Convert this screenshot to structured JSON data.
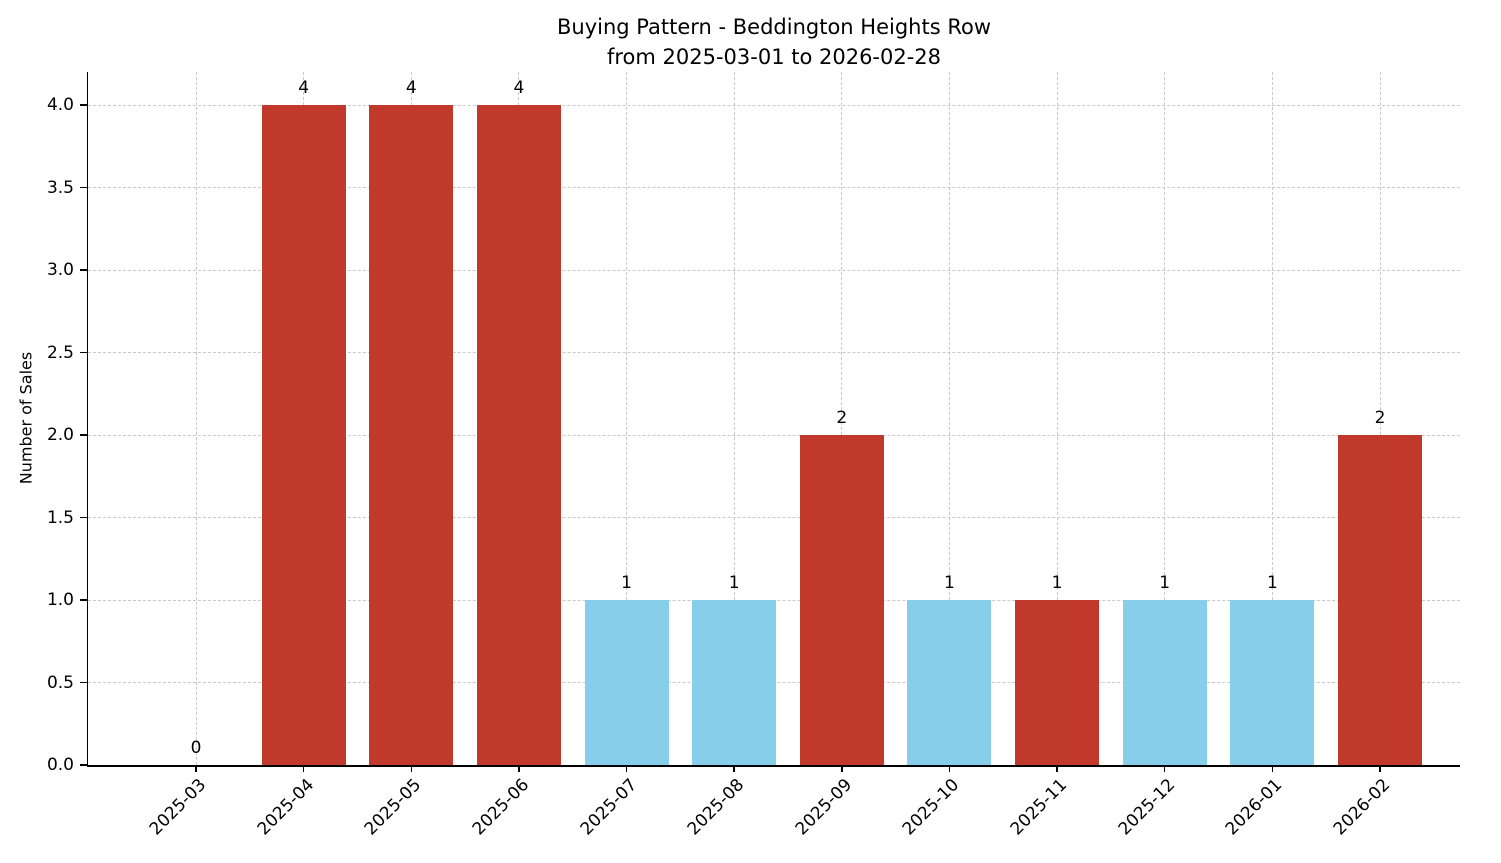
{
  "figure": {
    "background": "#ffffff"
  },
  "chart_data": {
    "type": "bar",
    "title": "Buying Pattern - Beddington Heights Row",
    "subtitle": "from 2025-03-01 to 2026-02-28",
    "xlabel": "",
    "ylabel": "Number of Sales",
    "categories": [
      "2025-03",
      "2025-04",
      "2025-05",
      "2025-06",
      "2025-07",
      "2025-08",
      "2025-09",
      "2025-10",
      "2025-11",
      "2025-12",
      "2026-01",
      "2026-02"
    ],
    "values": [
      0,
      4,
      4,
      4,
      1,
      1,
      2,
      1,
      1,
      1,
      1,
      2
    ],
    "bar_colors": [
      "#c0392b",
      "#c0392b",
      "#c0392b",
      "#c0392b",
      "#87ceeb",
      "#87ceeb",
      "#c0392b",
      "#87ceeb",
      "#c0392b",
      "#87ceeb",
      "#87ceeb",
      "#c0392b"
    ],
    "value_labels_shown": true,
    "ylim": [
      0,
      4.2
    ],
    "yticks": [
      "0.0",
      "0.5",
      "1.0",
      "1.5",
      "2.0",
      "2.5",
      "3.0",
      "3.5",
      "4.0"
    ],
    "grid": true,
    "grid_style": "dashed",
    "legend": "none"
  },
  "colors": {
    "red_bar": "#c0392b",
    "blue_bar": "#87ceeb",
    "grid": "#c9c9c9",
    "axis": "#000000",
    "text": "#000000"
  }
}
